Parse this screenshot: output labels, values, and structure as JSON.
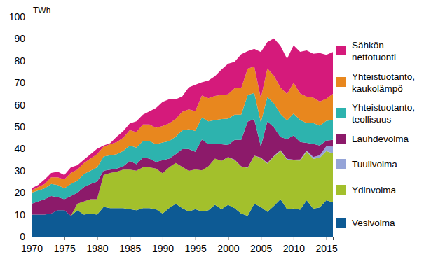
{
  "chart_data": {
    "type": "area",
    "stacked": true,
    "y_label": "TWh",
    "x": [
      1970,
      1971,
      1972,
      1973,
      1974,
      1975,
      1976,
      1977,
      1978,
      1979,
      1980,
      1981,
      1982,
      1983,
      1984,
      1985,
      1986,
      1987,
      1988,
      1989,
      1990,
      1991,
      1992,
      1993,
      1994,
      1995,
      1996,
      1997,
      1998,
      1999,
      2000,
      2001,
      2002,
      2003,
      2004,
      2005,
      2006,
      2007,
      2008,
      2009,
      2010,
      2011,
      2012,
      2013,
      2014,
      2015,
      2016
    ],
    "xlim": [
      1970,
      2016
    ],
    "xticks": [
      1970,
      1975,
      1980,
      1985,
      1990,
      1995,
      2000,
      2005,
      2010,
      2015
    ],
    "ylim": [
      0,
      100
    ],
    "yticks": [
      0,
      10,
      20,
      30,
      40,
      50,
      60,
      70,
      80,
      90,
      100
    ],
    "grid": false,
    "legend": "right",
    "series": [
      {
        "name": "Vesivoima",
        "color": "#0d5a94",
        "values": [
          10,
          10,
          10,
          10.5,
          12,
          12,
          9.5,
          12,
          10,
          10.5,
          10,
          13.5,
          13,
          13,
          13,
          12.5,
          12,
          13,
          13,
          12.5,
          10.5,
          13,
          15,
          13,
          11.5,
          12.5,
          11.5,
          12,
          14.5,
          12.5,
          14.5,
          13,
          10.5,
          9.5,
          15,
          13.5,
          11.3,
          14,
          17,
          12.5,
          12.8,
          12.3,
          16.6,
          12.7,
          13.3,
          16.6,
          15.6
        ]
      },
      {
        "name": "Ydinvoima",
        "color": "#a3c02c",
        "values": [
          0,
          0,
          0,
          0,
          0,
          0,
          0,
          3,
          6,
          6.5,
          7,
          14.5,
          16,
          16.5,
          17.5,
          18,
          18,
          18.5,
          18.5,
          18.5,
          18.3,
          18.5,
          18.5,
          18.8,
          18.4,
          18.1,
          18.7,
          20,
          21,
          22,
          21.6,
          21.9,
          21.4,
          21.8,
          21.8,
          22.3,
          22,
          22.5,
          22,
          22.6,
          21.9,
          22.3,
          22.1,
          22.7,
          22.6,
          22.3,
          22.3
        ]
      },
      {
        "name": "Tuulivoima",
        "color": "#95a4d8",
        "values": [
          0,
          0,
          0,
          0,
          0,
          0,
          0,
          0,
          0,
          0,
          0,
          0,
          0,
          0,
          0,
          0,
          0,
          0,
          0,
          0,
          0,
          0,
          0,
          0,
          0,
          0,
          0,
          0,
          0,
          0,
          0.1,
          0.1,
          0.1,
          0.1,
          0.1,
          0.2,
          0.2,
          0.2,
          0.3,
          0.3,
          0.3,
          0.5,
          0.5,
          0.8,
          1.1,
          2.3,
          3.1
        ]
      },
      {
        "name": "Lauhdevoima",
        "color": "#8c1a6a",
        "values": [
          5,
          6,
          7,
          8,
          6,
          5,
          9,
          5,
          6.5,
          7,
          8,
          2,
          1.5,
          1.5,
          1.5,
          4,
          3,
          4.5,
          4,
          3,
          6,
          4,
          4,
          8,
          10,
          8,
          14,
          10,
          6.5,
          7.5,
          5.5,
          9,
          12,
          21,
          16.5,
          5,
          19,
          13,
          6,
          9,
          11,
          8,
          3.5,
          6,
          4.5,
          2.5,
          3
        ]
      },
      {
        "name": "Yhteistuotanto, teollisuus",
        "color": "#2db3ae",
        "values": [
          5,
          5,
          5,
          5.5,
          5.5,
          5,
          5.5,
          5.5,
          6,
          6,
          6.5,
          6.5,
          6.5,
          6.5,
          7,
          7,
          7.5,
          7.5,
          8,
          8,
          8,
          8,
          8,
          8.5,
          9,
          9.5,
          10,
          10.5,
          11,
          11.5,
          12,
          11.5,
          11.5,
          12,
          12,
          11,
          11,
          11,
          10.5,
          8.5,
          10,
          10,
          9,
          9.5,
          9,
          9,
          9
        ]
      },
      {
        "name": "Yhteistuotanto, kaukolämpö",
        "color": "#e8871e",
        "values": [
          1,
          1.5,
          2,
          3,
          3.5,
          4,
          5,
          5,
          5,
          5.5,
          6,
          4.5,
          5,
          5.5,
          6,
          7,
          7,
          7.5,
          7.5,
          7.5,
          7.5,
          8,
          8,
          8.5,
          9,
          9,
          10,
          10.5,
          11,
          11,
          11,
          12,
          12,
          12,
          12,
          11,
          13,
          12.5,
          12,
          12,
          14,
          12,
          12,
          11.5,
          11,
          10,
          12
        ]
      },
      {
        "name": "Sähkön nettotuonti",
        "color": "#d51a7b",
        "values": [
          1,
          1,
          2,
          2,
          2.5,
          2,
          2.5,
          2,
          1.5,
          2,
          2.5,
          0.5,
          0.5,
          2.5,
          3,
          3,
          5,
          4.5,
          6,
          9,
          11,
          11,
          9,
          7,
          10,
          12,
          6,
          8,
          9,
          11.5,
          14,
          12,
          15.5,
          8,
          8,
          21,
          12,
          17,
          19,
          16,
          17,
          19,
          21,
          20,
          22,
          20,
          19
        ]
      }
    ]
  }
}
